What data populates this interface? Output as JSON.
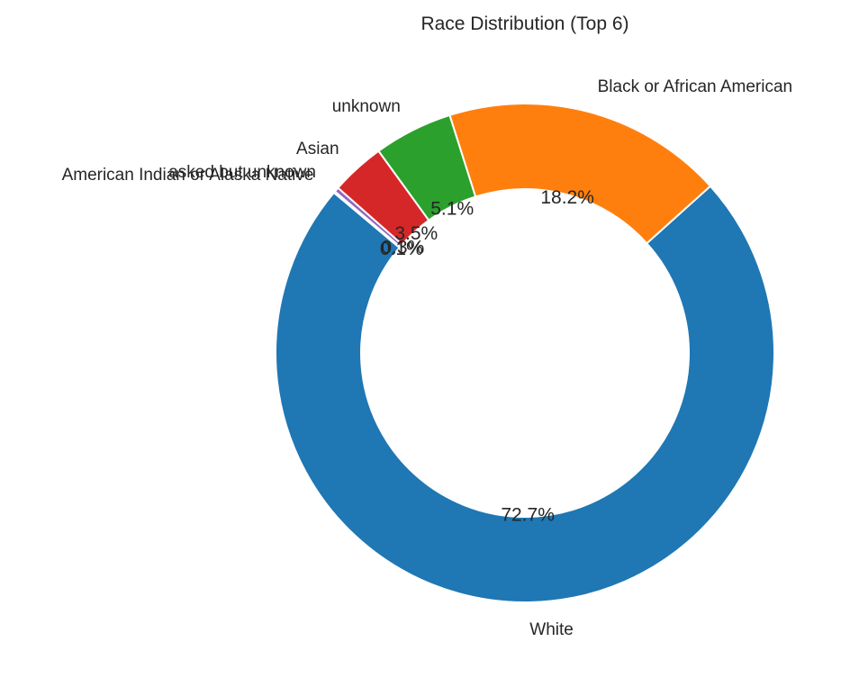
{
  "chart_data": {
    "type": "pie",
    "subtype": "donut",
    "title": "Race Distribution (Top 6)",
    "categories": [
      "White",
      "Black or African American",
      "unknown",
      "Asian",
      "asked but unknown",
      "American Indian or Alaska Native"
    ],
    "values": [
      72.7,
      18.2,
      5.1,
      3.5,
      0.3,
      0.1
    ],
    "value_labels": [
      "72.7%",
      "18.2%",
      "5.1%",
      "3.5%",
      "0.3%",
      "0.1%"
    ],
    "colors": [
      "#1f77b4",
      "#ff7f0e",
      "#2ca02c",
      "#d62728",
      "#9467bd",
      "#8c564b"
    ],
    "start_angle_deg": 140,
    "direction": "counterclockwise",
    "legend": "none"
  }
}
